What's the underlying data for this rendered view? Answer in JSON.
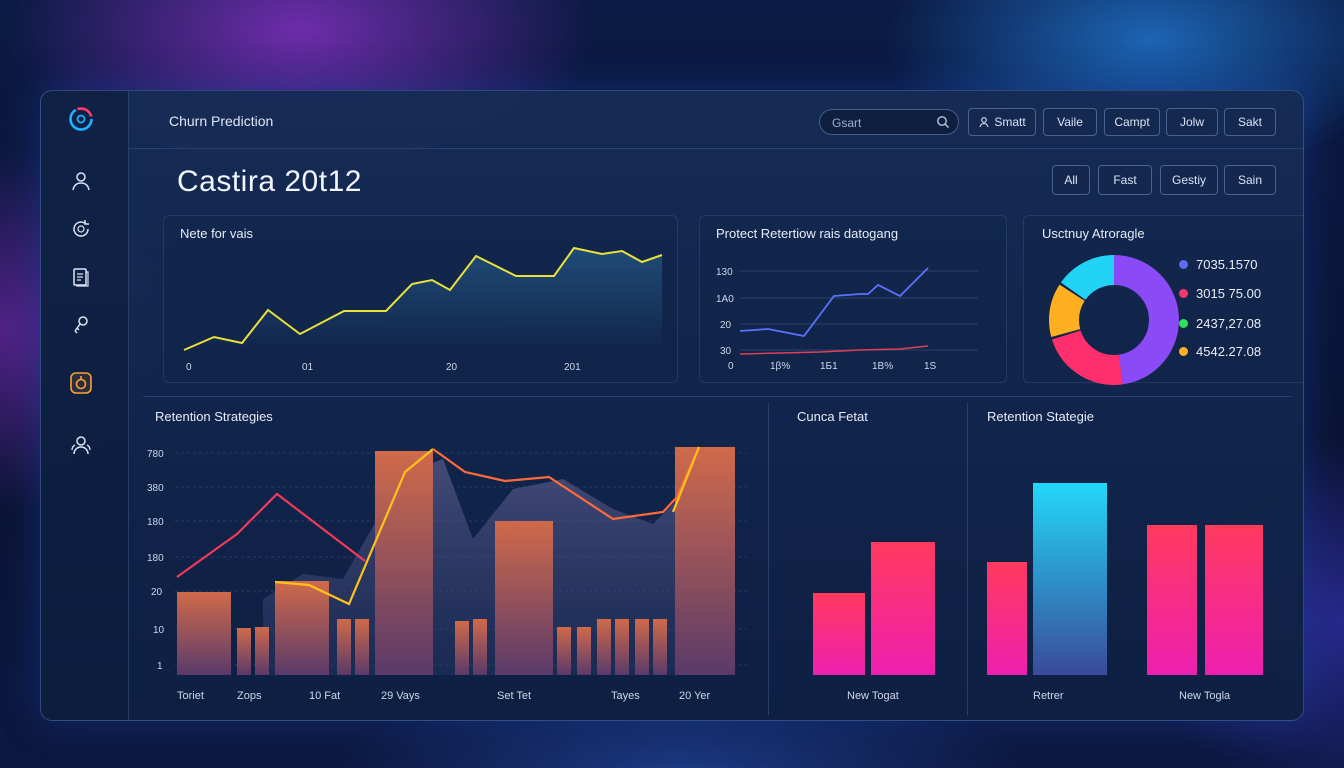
{
  "header": {
    "app_title": "Churn Prediction",
    "search_placeholder": "Gsart"
  },
  "toolbar": [
    {
      "label": "Smatt",
      "icon": "user-icon"
    },
    {
      "label": "Vaile"
    },
    {
      "label": "Campt"
    },
    {
      "label": "Jolw"
    },
    {
      "label": "Sakt"
    }
  ],
  "page": {
    "title": "Castira 20t12"
  },
  "filters": [
    "All",
    "Fast",
    "Gestiy",
    "Sain"
  ],
  "sidebar": [
    "user-icon",
    "refresh-icon",
    "document-icon",
    "key-icon",
    "shield-icon",
    "group-icon"
  ],
  "panels": {
    "p1": {
      "title": "Nete for vais",
      "xticks": [
        "0",
        "01",
        "20",
        "201"
      ]
    },
    "p2": {
      "title": "Protect Retertiow rais datogang",
      "yticks": [
        "130",
        "1A0",
        "20",
        "30"
      ],
      "xticks": [
        "0",
        "1β%",
        "1Б1",
        "1Β%",
        "1S"
      ]
    },
    "p3": {
      "title": "Usctnuy Atroragle",
      "legend": [
        {
          "value": "7035.1570",
          "color": "#5b6cf5"
        },
        {
          "value": "3015 75.00",
          "color": "#f0386b"
        },
        {
          "value": "2437,27.08",
          "color": "#2ee05a"
        },
        {
          "value": "4542.27.08",
          "color": "#ffb020"
        }
      ]
    },
    "p4": {
      "title": "Retention Strategies",
      "yticks": [
        "780",
        "380",
        "180",
        "180",
        "20",
        "10",
        "1"
      ],
      "xticks": [
        "Toriet",
        "Zops",
        "10 Fat",
        "29 Vays",
        "Set Tet",
        "Tayes",
        "20 Yer"
      ]
    },
    "p5": {
      "title": "Cunca Fetat",
      "xlabel": "New Togat"
    },
    "p6": {
      "title": "Retention Stategie",
      "xlabels": [
        "Retrer",
        "New Togla"
      ]
    }
  },
  "colors": {
    "yellow": "#e8e23a",
    "blue": "#5a72ff",
    "red": "#e0405a",
    "cyan": "#22d3f5",
    "pink": "#ff3a6e",
    "magenta": "#ee1fb0",
    "orange": "#ff7a3a"
  }
}
